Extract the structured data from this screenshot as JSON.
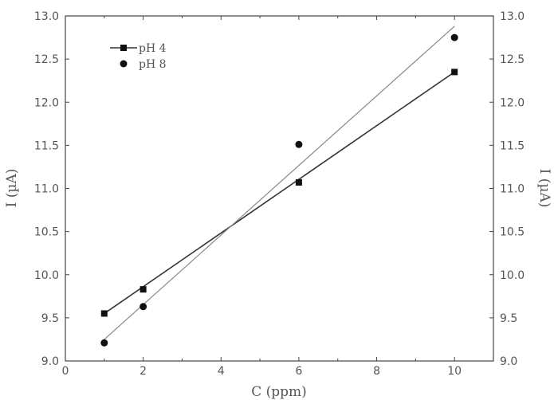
{
  "chart_data": {
    "type": "scatter",
    "xlabel": "C (ppm)",
    "ylabel": "I (µA)",
    "ylabel_right": "I (µA)",
    "xlim": [
      0,
      11
    ],
    "ylim": [
      9.0,
      13.0
    ],
    "xticks": [
      0,
      2,
      4,
      6,
      8,
      10
    ],
    "yticks": [
      9.0,
      9.5,
      10.0,
      10.5,
      11.0,
      11.5,
      12.0,
      12.5,
      13.0
    ],
    "grid": false,
    "legend_placement": "top-left",
    "series": [
      {
        "name": "pH 4",
        "marker": "square",
        "x": [
          1,
          2,
          6,
          10
        ],
        "y": [
          9.55,
          9.83,
          11.07,
          12.35
        ],
        "fit_line": {
          "x": [
            1,
            10
          ],
          "y": [
            9.55,
            12.35
          ]
        },
        "line_color": "#333333"
      },
      {
        "name": "pH 8",
        "marker": "circle",
        "x": [
          1,
          2,
          6,
          10
        ],
        "y": [
          9.21,
          9.63,
          11.51,
          12.75
        ],
        "fit_line": {
          "x": [
            1,
            10
          ],
          "y": [
            9.25,
            12.88
          ]
        },
        "line_color": "#888888"
      }
    ]
  }
}
